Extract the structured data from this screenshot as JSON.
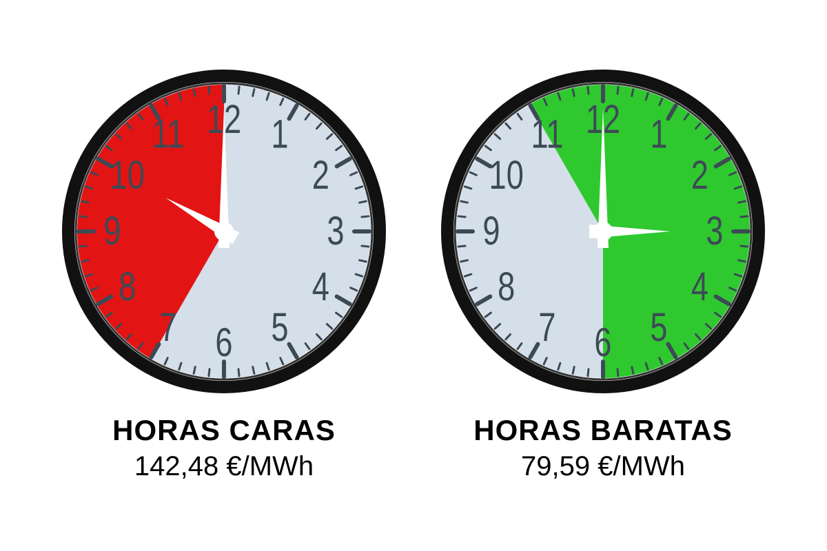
{
  "background": "#ffffff",
  "face_color": "#d4dfe9",
  "rim_outer": "#111111",
  "rim_inner": "#333333",
  "tick_color": "#3d4a55",
  "number_color": "#3d4a55",
  "hand_color": "#ffffff",
  "number_fontsize": 58,
  "clock_radius": 235,
  "rim_width": 18,
  "clocks": [
    {
      "id": "expensive",
      "sector_color": "#e31414",
      "sector_start_hour": 7,
      "sector_end_hour": 12,
      "hour_hand": 10,
      "minute_hand": 0,
      "title": "HORAS CARAS",
      "price": "142,48 €/MWh"
    },
    {
      "id": "cheap",
      "sector_color": "#2fc92f",
      "sector_start_hour": 11,
      "sector_end_hour": 18,
      "hour_hand": 3,
      "minute_hand": 0,
      "title": "HORAS BARATAS",
      "price": "79,59 €/MWh"
    }
  ]
}
